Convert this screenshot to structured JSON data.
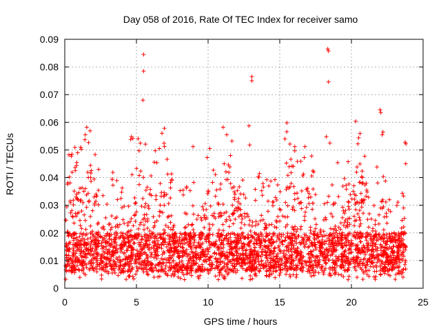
{
  "chart_data": {
    "type": "scatter",
    "title": "Day 058 of 2016, Rate Of TEC Index for receiver samo",
    "xlabel": "GPS time / hours",
    "ylabel": "ROTI / TECUs",
    "xlim": [
      0,
      25
    ],
    "ylim": [
      0,
      0.09
    ],
    "x_ticks": [
      "0",
      "5",
      "10",
      "15",
      "20",
      "25"
    ],
    "y_ticks": [
      "0",
      "0.01",
      "0.02",
      "0.03",
      "0.04",
      "0.05",
      "0.06",
      "0.07",
      "0.08",
      "0.09"
    ],
    "grid": true,
    "marker": "+",
    "color": "#ff0000",
    "series": [
      {
        "name": "ROTI",
        "points": [
          [
            5.5,
            0.0845
          ],
          [
            5.5,
            0.0785
          ],
          [
            5.45,
            0.068
          ],
          [
            6.95,
            0.0578
          ],
          [
            13.05,
            0.0765
          ],
          [
            13.05,
            0.075
          ],
          [
            12.85,
            0.0587
          ],
          [
            18.35,
            0.0865
          ],
          [
            18.4,
            0.0858
          ],
          [
            18.4,
            0.0746
          ],
          [
            22.0,
            0.0645
          ],
          [
            22.05,
            0.0635
          ],
          [
            11.05,
            0.0582
          ],
          [
            11.3,
            0.0555
          ],
          [
            4.65,
            0.0548
          ],
          [
            4.75,
            0.0542
          ],
          [
            4.6,
            0.0538
          ],
          [
            18.25,
            0.0548
          ],
          [
            22.2,
            0.0565
          ],
          [
            22.15,
            0.0555
          ],
          [
            23.75,
            0.0528
          ],
          [
            23.8,
            0.0522
          ],
          [
            8.95,
            0.0512
          ],
          [
            20.45,
            0.0522
          ],
          [
            16.05,
            0.0512
          ],
          [
            12.9,
            0.0518
          ],
          [
            18.5,
            0.0525
          ],
          [
            6.6,
            0.0505
          ],
          [
            0.9,
            0.049
          ],
          [
            0.5,
            0.0485
          ]
        ]
      }
    ]
  }
}
